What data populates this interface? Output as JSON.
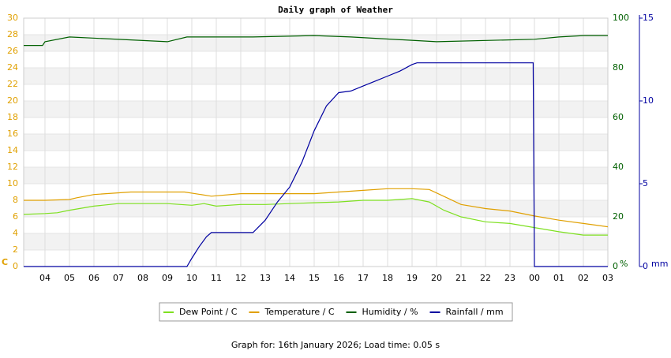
{
  "chart_data": {
    "type": "line",
    "title": "Daily graph of Weather",
    "xlim": [
      0.13,
      24
    ],
    "xticks": [
      {
        "value": 1,
        "label": "04"
      },
      {
        "value": 2,
        "label": "05"
      },
      {
        "value": 3,
        "label": "06"
      },
      {
        "value": 4,
        "label": "07"
      },
      {
        "value": 5,
        "label": "08"
      },
      {
        "value": 6,
        "label": "09"
      },
      {
        "value": 7,
        "label": "10"
      },
      {
        "value": 8,
        "label": "11"
      },
      {
        "value": 9,
        "label": "12"
      },
      {
        "value": 10,
        "label": "13"
      },
      {
        "value": 11,
        "label": "14"
      },
      {
        "value": 12,
        "label": "15"
      },
      {
        "value": 13,
        "label": "16"
      },
      {
        "value": 14,
        "label": "17"
      },
      {
        "value": 15,
        "label": "18"
      },
      {
        "value": 16,
        "label": "19"
      },
      {
        "value": 17,
        "label": "20"
      },
      {
        "value": 18,
        "label": "21"
      },
      {
        "value": 19,
        "label": "22"
      },
      {
        "value": 20,
        "label": "23"
      },
      {
        "value": 21,
        "label": "00"
      },
      {
        "value": 22,
        "label": "01"
      },
      {
        "value": 23,
        "label": "02"
      },
      {
        "value": 24,
        "label": "03"
      }
    ],
    "y_label": "C",
    "ylim": [
      0,
      30
    ],
    "yticks": [
      0,
      2,
      4,
      6,
      8,
      10,
      12,
      14,
      16,
      18,
      20,
      22,
      24,
      26,
      28,
      30
    ],
    "y_color": "#e0a000",
    "y2_label": "%",
    "y2lim": [
      0,
      100
    ],
    "y2ticks": [
      0,
      20,
      40,
      60,
      80,
      100
    ],
    "y2_color": "#006000",
    "y3_label": "mm",
    "y3lim": [
      0,
      15
    ],
    "y3ticks": [
      0,
      5,
      10,
      15
    ],
    "y3_color": "#0000a0",
    "grid": true,
    "series": [
      {
        "name": "Dew Point / C",
        "color": "#7ee020",
        "x": [
          0.13,
          1,
          1.5,
          2,
          3,
          4,
          6,
          7,
          7.5,
          8,
          9,
          10,
          11,
          12,
          13,
          14,
          15,
          16,
          16.7,
          17.3,
          18,
          19,
          20,
          21,
          22,
          23,
          24
        ],
        "values": [
          6.3,
          6.4,
          6.5,
          6.8,
          7.3,
          7.6,
          7.6,
          7.4,
          7.6,
          7.3,
          7.5,
          7.5,
          7.6,
          7.7,
          7.8,
          8.0,
          8.0,
          8.2,
          7.8,
          6.8,
          6.0,
          5.4,
          5.2,
          4.7,
          4.2,
          3.8,
          3.8
        ]
      },
      {
        "name": "Temperature / C",
        "color": "#e0a000",
        "x": [
          0.13,
          1,
          2,
          2.3,
          3,
          4.5,
          6.7,
          7.8,
          9,
          11,
          12,
          13,
          14,
          15,
          16,
          16.7,
          17.5,
          18,
          19,
          20,
          21,
          22,
          23,
          24
        ],
        "values": [
          8.0,
          8.0,
          8.1,
          8.3,
          8.7,
          9.0,
          9.0,
          8.5,
          8.8,
          8.8,
          8.8,
          9.0,
          9.2,
          9.4,
          9.4,
          9.3,
          8.2,
          7.5,
          7.0,
          6.7,
          6.1,
          5.6,
          5.2,
          4.8
        ]
      },
      {
        "name": "Humidity / %",
        "color": "#006000",
        "axis": "y2",
        "x": [
          0.13,
          0.9,
          1,
          2,
          6,
          6.8,
          9.5,
          12,
          13.5,
          17,
          21,
          22,
          23,
          24
        ],
        "values": [
          89,
          89,
          90.5,
          92.4,
          90.5,
          92.4,
          92.4,
          93,
          92.4,
          90.5,
          91.5,
          92.4,
          93,
          93
        ]
      },
      {
        "name": "Rainfall / mm",
        "color": "#0000a0",
        "axis": "y3",
        "x": [
          0.13,
          6.8,
          7.0,
          7.3,
          7.6,
          7.8,
          9.5,
          10,
          10.5,
          11,
          11.5,
          12,
          12.5,
          13,
          13.5,
          14,
          14.5,
          15,
          15.5,
          16,
          16.2,
          20.95,
          21,
          24
        ],
        "values": [
          0,
          0,
          0.5,
          1.2,
          1.8,
          2.05,
          2.05,
          2.8,
          3.9,
          4.8,
          6.3,
          8.2,
          9.7,
          10.5,
          10.6,
          10.9,
          11.2,
          11.5,
          11.8,
          12.2,
          12.3,
          12.3,
          0,
          0
        ]
      }
    ],
    "footer": "Graph for: 16th January 2026; Load time: 0.05 s"
  }
}
